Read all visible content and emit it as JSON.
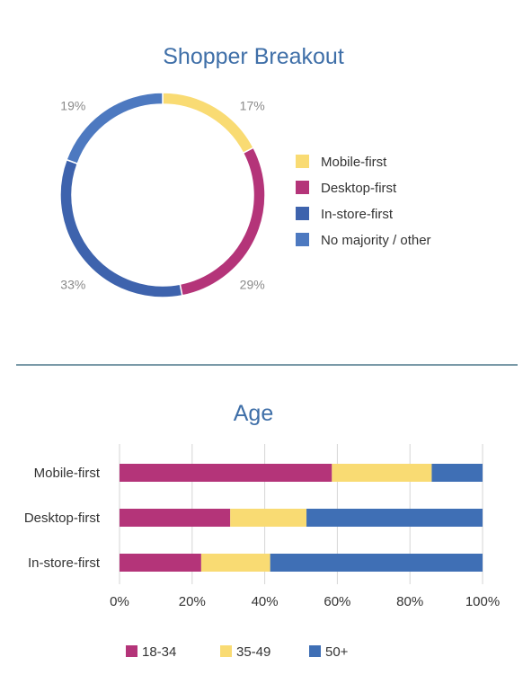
{
  "chart_data": [
    {
      "type": "pie",
      "title": "Shopper Breakout",
      "labels": [
        "Mobile-first",
        "Desktop-first",
        "In-store-first",
        "No majority / other"
      ],
      "values": [
        17,
        29,
        33,
        19
      ],
      "value_labels": [
        "17%",
        "29%",
        "33%",
        "19%"
      ],
      "colors": [
        "#f9db73",
        "#b43479",
        "#3e63ad",
        "#4d79c0"
      ],
      "donut": true,
      "legend": "right"
    },
    {
      "type": "bar",
      "orientation": "horizontal",
      "stacked": true,
      "title": "Age",
      "categories": [
        "Mobile-first",
        "Desktop-first",
        "In-store-first"
      ],
      "series": [
        {
          "name": "18-34",
          "values": [
            58.5,
            30.5,
            22.5
          ],
          "color": "#b43479"
        },
        {
          "name": "35-49",
          "values": [
            27.5,
            21,
            19
          ],
          "color": "#f9db73"
        },
        {
          "name": "50+",
          "values": [
            14,
            48.5,
            58.5
          ],
          "color": "#3f6fb5"
        }
      ],
      "xlim": [
        0,
        100
      ],
      "xticks": [
        0,
        20,
        40,
        60,
        80,
        100
      ],
      "xtick_labels": [
        "0%",
        "20%",
        "40%",
        "60%",
        "80%",
        "100%"
      ],
      "grid": true,
      "legend": "bottom"
    }
  ]
}
